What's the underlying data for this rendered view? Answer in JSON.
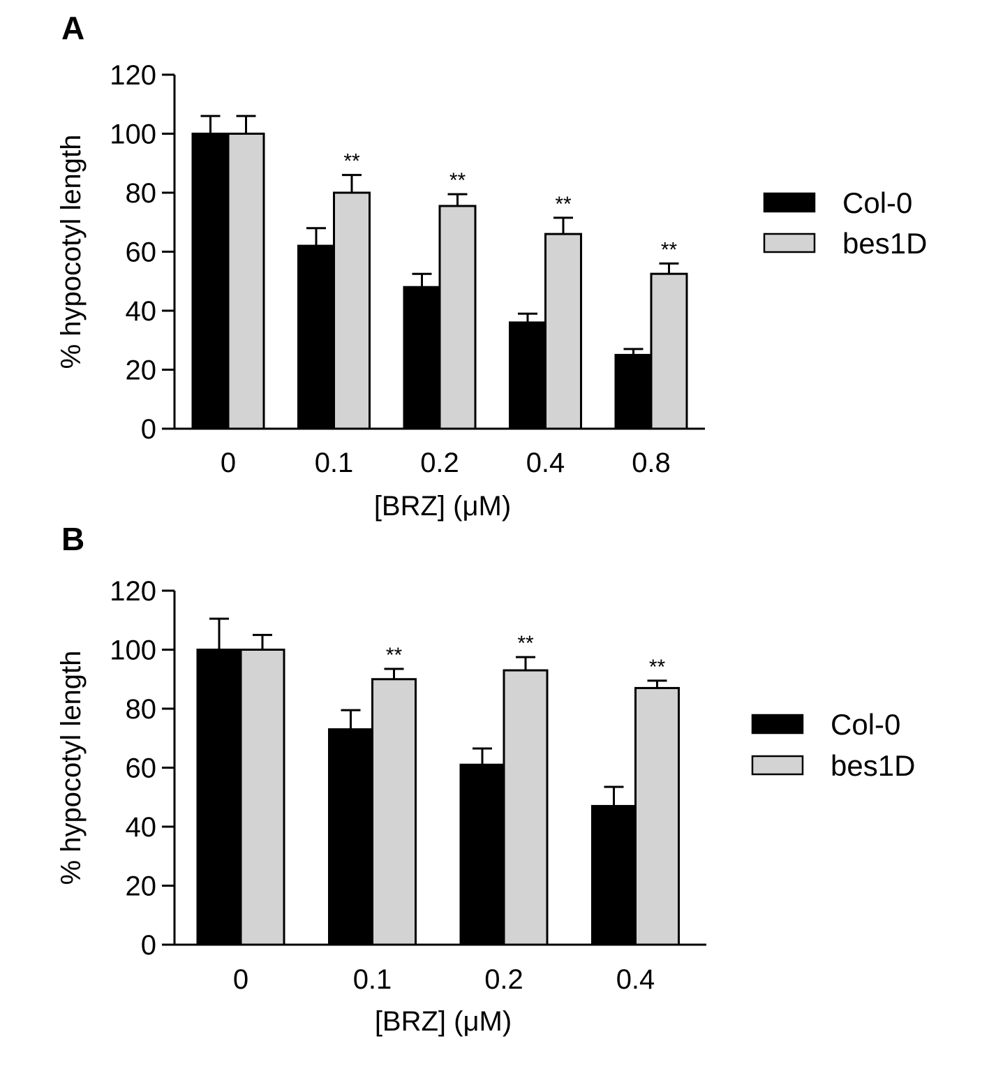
{
  "charts": [
    {
      "panel_label": "A",
      "ylabel": "% hypocotyl length",
      "xlabel": "[BRZ] (μM)",
      "categories": [
        "0",
        "0.1",
        "0.2",
        "0.4",
        "0.8"
      ],
      "yticks": [
        "0",
        "20",
        "40",
        "60",
        "80",
        "100",
        "120"
      ],
      "legend": [
        "Col-0",
        "bes1D"
      ]
    },
    {
      "panel_label": "B",
      "ylabel": "% hypocotyl length",
      "xlabel": "[BRZ] (μM)",
      "categories": [
        "0",
        "0.1",
        "0.2",
        "0.4"
      ],
      "yticks": [
        "0",
        "20",
        "40",
        "60",
        "80",
        "100",
        "120"
      ],
      "legend": [
        "Col-0",
        "bes1D"
      ]
    }
  ],
  "chart_data": [
    {
      "type": "bar",
      "panel": "A",
      "categories": [
        "0",
        "0.1",
        "0.2",
        "0.4",
        "0.8"
      ],
      "series": [
        {
          "name": "Col-0",
          "color": "#000000",
          "values": [
            100,
            62,
            48,
            36,
            25
          ],
          "errors": [
            6,
            6,
            4.5,
            3,
            2
          ]
        },
        {
          "name": "bes1D",
          "color": "#d3d3d3",
          "values": [
            100,
            80,
            75.5,
            66,
            52.5
          ],
          "errors": [
            6,
            6,
            4,
            5.5,
            3.5
          ]
        }
      ],
      "significance": [
        "",
        "**",
        "**",
        "**",
        "**"
      ],
      "xlabel": "[BRZ] (μM)",
      "ylabel": "% hypocotyl length",
      "ylim": [
        0,
        120
      ],
      "legend_position": "right",
      "grid": false
    },
    {
      "type": "bar",
      "panel": "B",
      "categories": [
        "0",
        "0.1",
        "0.2",
        "0.4"
      ],
      "series": [
        {
          "name": "Col-0",
          "color": "#000000",
          "values": [
            100,
            73,
            61,
            47
          ],
          "errors": [
            10.5,
            6.5,
            5.5,
            6.5
          ]
        },
        {
          "name": "bes1D",
          "color": "#d3d3d3",
          "values": [
            100,
            90,
            93,
            87
          ],
          "errors": [
            5,
            3.5,
            4.5,
            2.5
          ]
        }
      ],
      "significance": [
        "",
        "**",
        "**",
        "**"
      ],
      "xlabel": "[BRZ] (μM)",
      "ylabel": "% hypocotyl length",
      "ylim": [
        0,
        120
      ],
      "legend_position": "right",
      "grid": false
    }
  ]
}
